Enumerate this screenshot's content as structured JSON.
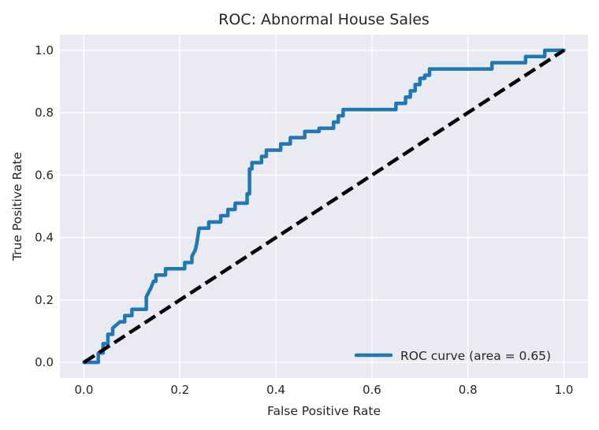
{
  "chart_data": {
    "type": "line",
    "title": "ROC: Abnormal House Sales",
    "xlabel": "False Positive Rate",
    "ylabel": "True Positive Rate",
    "xlim": [
      -0.05,
      1.05
    ],
    "ylim": [
      -0.05,
      1.05
    ],
    "x_ticks": [
      "0.0",
      "0.2",
      "0.4",
      "0.6",
      "0.8",
      "1.0"
    ],
    "y_ticks": [
      "0.0",
      "0.2",
      "0.4",
      "0.6",
      "0.8",
      "1.0"
    ],
    "grid": true,
    "legend_position": "lower-right",
    "series": [
      {
        "name": "ROC curve (area = 0.65)",
        "color": "#1f77b4",
        "style": "solid",
        "x": [
          0.0,
          0.03,
          0.03,
          0.04,
          0.04,
          0.05,
          0.05,
          0.06,
          0.06,
          0.075,
          0.085,
          0.085,
          0.1,
          0.1,
          0.11,
          0.11,
          0.13,
          0.13,
          0.14,
          0.145,
          0.15,
          0.15,
          0.17,
          0.17,
          0.21,
          0.21,
          0.225,
          0.225,
          0.232,
          0.235,
          0.238,
          0.24,
          0.25,
          0.26,
          0.26,
          0.285,
          0.285,
          0.3,
          0.3,
          0.315,
          0.315,
          0.34,
          0.34,
          0.345,
          0.345,
          0.35,
          0.35,
          0.37,
          0.37,
          0.38,
          0.38,
          0.41,
          0.41,
          0.43,
          0.43,
          0.46,
          0.46,
          0.49,
          0.49,
          0.52,
          0.52,
          0.53,
          0.53,
          0.54,
          0.54,
          0.61,
          0.65,
          0.65,
          0.67,
          0.67,
          0.68,
          0.68,
          0.69,
          0.69,
          0.7,
          0.7,
          0.71,
          0.71,
          0.72,
          0.72,
          0.73,
          0.73,
          0.85,
          0.85,
          0.92,
          0.92,
          0.96,
          0.96,
          1.0
        ],
        "y": [
          0.0,
          0.0,
          0.03,
          0.03,
          0.06,
          0.06,
          0.09,
          0.09,
          0.11,
          0.13,
          0.13,
          0.15,
          0.15,
          0.17,
          0.17,
          0.17,
          0.17,
          0.21,
          0.24,
          0.26,
          0.26,
          0.28,
          0.28,
          0.3,
          0.3,
          0.32,
          0.32,
          0.34,
          0.36,
          0.38,
          0.41,
          0.43,
          0.43,
          0.43,
          0.45,
          0.45,
          0.47,
          0.47,
          0.49,
          0.49,
          0.51,
          0.51,
          0.54,
          0.54,
          0.62,
          0.62,
          0.64,
          0.64,
          0.66,
          0.66,
          0.68,
          0.68,
          0.7,
          0.7,
          0.72,
          0.72,
          0.74,
          0.74,
          0.75,
          0.75,
          0.77,
          0.77,
          0.79,
          0.79,
          0.81,
          0.81,
          0.81,
          0.83,
          0.83,
          0.85,
          0.85,
          0.87,
          0.87,
          0.89,
          0.89,
          0.91,
          0.91,
          0.92,
          0.92,
          0.94,
          0.94,
          0.94,
          0.94,
          0.96,
          0.96,
          0.98,
          0.98,
          1.0,
          1.0
        ]
      },
      {
        "name": "",
        "color": "#000000",
        "style": "dashed",
        "x": [
          0.0,
          1.0
        ],
        "y": [
          0.0,
          1.0
        ]
      }
    ]
  }
}
